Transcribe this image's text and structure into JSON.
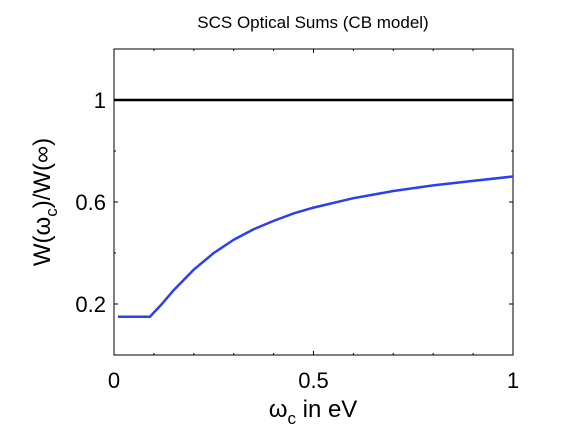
{
  "chart_data": {
    "type": "line",
    "title": "SCS Optical Sums (CB model)",
    "xlabel_base": "ω",
    "xlabel_sub": "c",
    "xlabel_rest": " in eV",
    "ylabel_pre": "W(ω",
    "ylabel_sub": "c",
    "ylabel_post": ")/W(∞)",
    "xlim": [
      0,
      1
    ],
    "ylim": [
      0,
      1.2
    ],
    "xticks": [
      0,
      0.5,
      1
    ],
    "xtick_labels": [
      "0",
      "0.5",
      "1"
    ],
    "yticks": [
      0.2,
      0.6,
      1
    ],
    "ytick_labels": [
      "0.2",
      "0.6",
      "1"
    ],
    "grid": false,
    "series": [
      {
        "color": "#000000",
        "x": [
          0,
          1
        ],
        "y": [
          1.0,
          1.0
        ]
      },
      {
        "color": "#2b3ff0",
        "x": [
          0.01,
          0.09,
          0.12,
          0.15,
          0.2,
          0.25,
          0.3,
          0.35,
          0.4,
          0.45,
          0.5,
          0.6,
          0.7,
          0.8,
          0.9,
          1.0
        ],
        "y": [
          0.15,
          0.15,
          0.2,
          0.255,
          0.335,
          0.4,
          0.452,
          0.493,
          0.526,
          0.555,
          0.578,
          0.615,
          0.643,
          0.665,
          0.683,
          0.7
        ]
      }
    ]
  }
}
